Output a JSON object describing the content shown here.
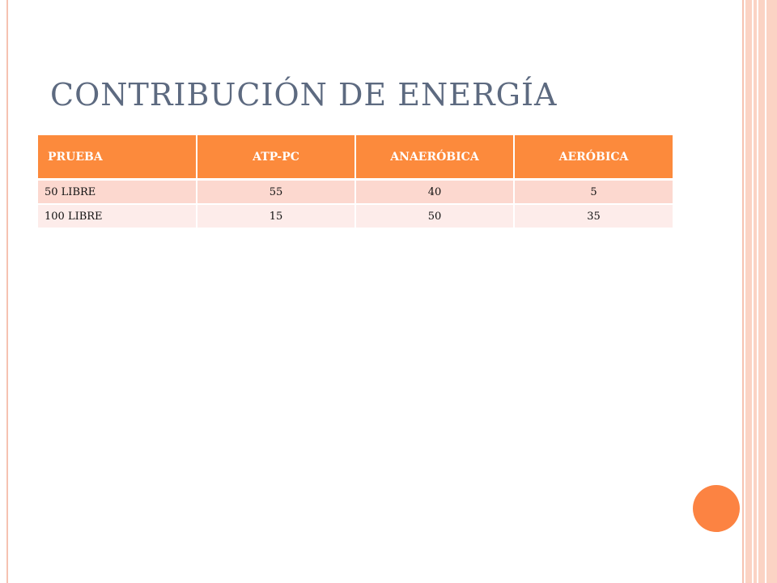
{
  "slide": {
    "title": "CONTRIBUCIÓN DE ENERGÍA",
    "colors": {
      "accent": "#fc8342",
      "header_fill": "#fc8a3c",
      "row_odd": "#fcd8cf",
      "row_even": "#fdecea",
      "title_text": "#5d6a80",
      "border_band": "#fbd3c4"
    }
  },
  "table": {
    "headers": [
      "PRUEBA",
      "ATP-PC",
      "ANAERÓBICA",
      "AERÓBICA"
    ],
    "rows": [
      [
        "50 LIBRE",
        "55",
        "40",
        "5"
      ],
      [
        "100 LIBRE",
        "15",
        "50",
        "35"
      ]
    ]
  }
}
